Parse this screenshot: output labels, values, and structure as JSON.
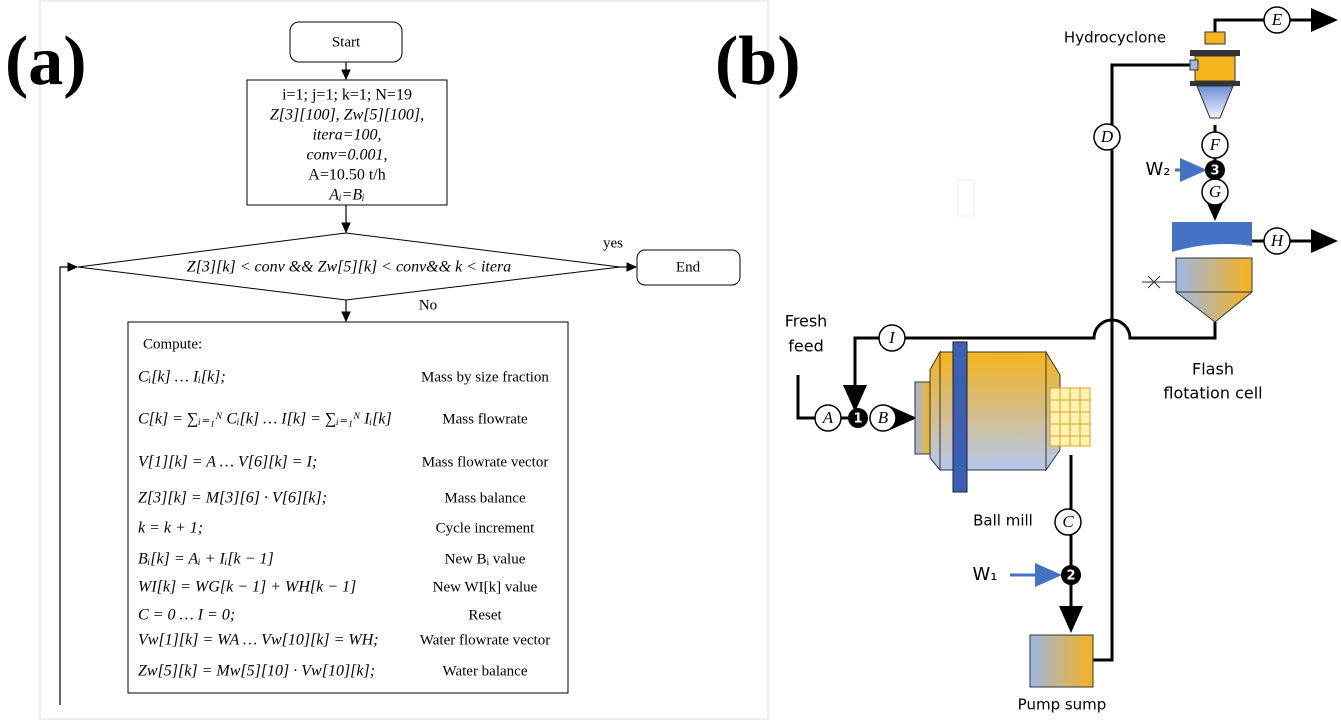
{
  "panel_a": {
    "label": "(a)",
    "start": "Start",
    "init": [
      "i=1; j=1; k=1; N=19",
      "Z[3][100], Zw[5][100],",
      "itera=100,",
      "conv=0.001,",
      "A=10.50 t/h",
      "Aᵢ=Bᵢ"
    ],
    "condition": "Z[3][k] < conv && Zw[5][k] < conv&& k < itera",
    "yes": "yes",
    "no": "No",
    "end": "End",
    "compute_title": "Compute:",
    "steps": [
      {
        "formula": "Cᵢ[k] … Iᵢ[k];",
        "description": "Mass by size fraction"
      },
      {
        "formula": "C[k] = ∑ᵢ₌₁ᴺ Cᵢ[k] … I[k] = ∑ᵢ₌₁ᴺ Iᵢ[k]",
        "description": "Mass flowrate"
      },
      {
        "formula": "V[1][k] = A … V[6][k] = I;",
        "description": "Mass flowrate vector"
      },
      {
        "formula": "Z[3][k] = M[3][6] · V[6][k];",
        "description": "Mass balance"
      },
      {
        "formula": "k = k + 1;",
        "description": "Cycle increment"
      },
      {
        "formula": "Bᵢ[k] = Aᵢ + Iᵢ[k − 1]",
        "description": "New Bᵢ value"
      },
      {
        "formula": "WI[k] = WG[k − 1] + WH[k − 1]",
        "description": "New WI[k] value"
      },
      {
        "formula": "C = 0 … I = 0;",
        "description": "Reset"
      },
      {
        "formula": "Vw[1][k] = WA … Vw[10][k] = WH;",
        "description": "Water flowrate vector"
      },
      {
        "formula": "Zw[5][k] = Mw[5][10] · Vw[10][k];",
        "description": "Water balance"
      }
    ]
  },
  "panel_b": {
    "label": "(b)",
    "hydrocyclone": "Hydrocyclone",
    "fresh_feed": [
      "Fresh",
      "feed"
    ],
    "ball_mill": "Ball mill",
    "pump_sump": "Pump sump",
    "flotation": [
      "Flash",
      "flotation cell"
    ],
    "streams": [
      "A",
      "B",
      "C",
      "D",
      "E",
      "F",
      "G",
      "H",
      "I"
    ],
    "water": [
      "W₁",
      "W₂"
    ],
    "points": [
      "1",
      "2",
      "3"
    ]
  }
}
